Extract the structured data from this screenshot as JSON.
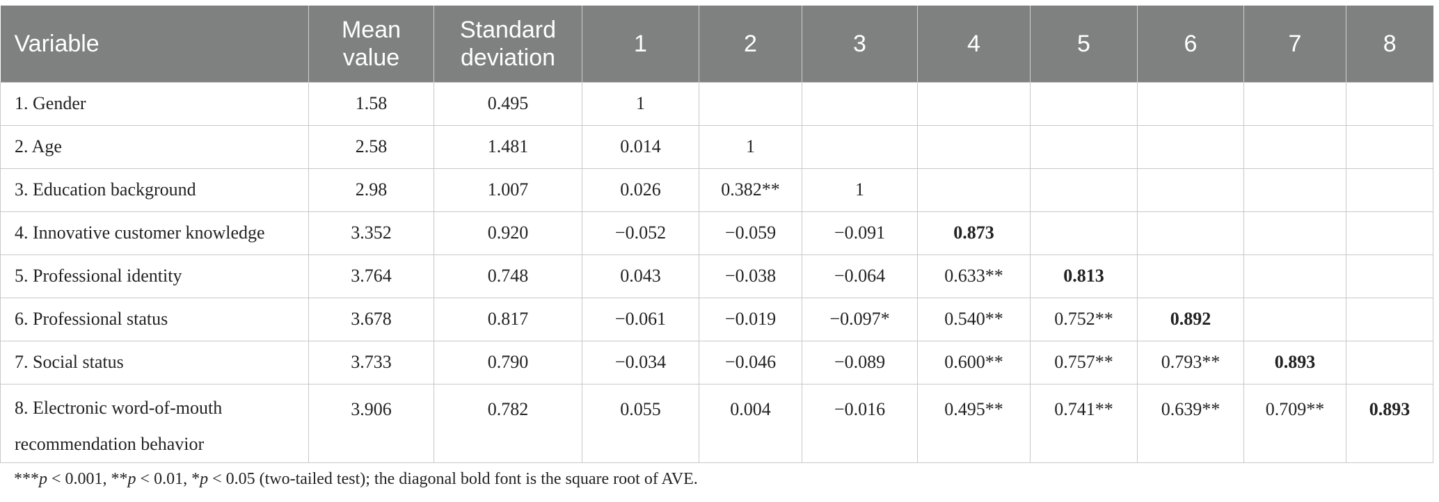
{
  "table": {
    "headers": [
      "Variable",
      "Mean value",
      "Standard deviation",
      "1",
      "2",
      "3",
      "4",
      "5",
      "6",
      "7",
      "8"
    ],
    "header_lines": {
      "mean": [
        "Mean",
        "value"
      ],
      "sd": [
        "Standard",
        "deviation"
      ]
    },
    "rows": [
      {
        "variable": "1. Gender",
        "mean": "1.58",
        "sd": "0.495",
        "c": [
          "1",
          "",
          "",
          "",
          "",
          "",
          "",
          ""
        ]
      },
      {
        "variable": "2. Age",
        "mean": "2.58",
        "sd": "1.481",
        "c": [
          "0.014",
          "1",
          "",
          "",
          "",
          "",
          "",
          ""
        ]
      },
      {
        "variable": "3. Education background",
        "mean": "2.98",
        "sd": "1.007",
        "c": [
          "0.026",
          "0.382**",
          "1",
          "",
          "",
          "",
          "",
          ""
        ]
      },
      {
        "variable": "4. Innovative customer knowledge",
        "mean": "3.352",
        "sd": "0.920",
        "c": [
          "−0.052",
          "−0.059",
          "−0.091",
          "0.873",
          "",
          "",
          "",
          ""
        ]
      },
      {
        "variable": "5. Professional identity",
        "mean": "3.764",
        "sd": "0.748",
        "c": [
          "0.043",
          "−0.038",
          "−0.064",
          "0.633**",
          "0.813",
          "",
          "",
          ""
        ]
      },
      {
        "variable": "6. Professional status",
        "mean": "3.678",
        "sd": "0.817",
        "c": [
          "−0.061",
          "−0.019",
          "−0.097*",
          "0.540**",
          "0.752**",
          "0.892",
          "",
          ""
        ]
      },
      {
        "variable": "7. Social status",
        "mean": "3.733",
        "sd": "0.790",
        "c": [
          "−0.034",
          "−0.046",
          "−0.089",
          "0.600**",
          "0.757**",
          "0.793**",
          "0.893",
          ""
        ]
      },
      {
        "variable": "8. Electronic word-of-mouth recommendation behavior",
        "mean": "3.906",
        "sd": "0.782",
        "c": [
          "0.055",
          "0.004",
          "−0.016",
          "0.495**",
          "0.741**",
          "0.639**",
          "0.709**",
          "0.893"
        ]
      }
    ],
    "row8_lines": [
      "8. Electronic word-of-mouth",
      "recommendation behavior"
    ]
  },
  "note": {
    "p1": "***",
    "p1_var": "p",
    "p1_text": " < 0.001, **",
    "p2_var": "p",
    "p2_text": " < 0.01, *",
    "p3_var": "p",
    "p3_text": " < 0.05 (two-tailed test); the diagonal bold font is the square root of AVE."
  },
  "colors": {
    "header_bg": "#7f8180",
    "header_text": "#ffffff",
    "grid": "#c8c8c8",
    "text": "#222222"
  }
}
